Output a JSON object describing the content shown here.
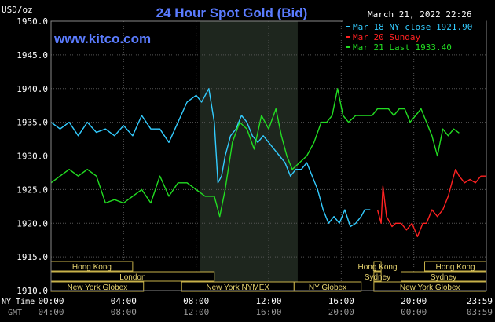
{
  "chart_data": {
    "type": "line",
    "title": "24 Hour Spot Gold (Bid)",
    "source_label": "www.kitco.com",
    "timestamp": "March 21, 2022 22:26",
    "ylabel": "USD/oz",
    "ylim": [
      1910,
      1950
    ],
    "y_ticks": [
      "1950.0",
      "1945.0",
      "1940.0",
      "1935.0",
      "1930.0",
      "1925.0",
      "1920.0",
      "1915.0",
      "1910.0"
    ],
    "x_axis_ny_label": "NY Time",
    "x_axis_gmt_label": "GMT",
    "x_ticks_ny": [
      "00:00",
      "04:00",
      "08:00",
      "12:00",
      "16:00",
      "20:00",
      "23:59"
    ],
    "x_ticks_gmt": [
      "04:00",
      "08:00",
      "12:00",
      "16:00",
      "20:00",
      "00:00",
      "03:59"
    ],
    "x_tick_hours": [
      0,
      4,
      8,
      12,
      16,
      20,
      23.98
    ],
    "shaded_hours": [
      8.2,
      13.6
    ],
    "grid": true,
    "legend_position": "top-right",
    "legend": [
      {
        "label": "Mar 18 NY close 1921.90",
        "color": "#33ccff"
      },
      {
        "label": "Mar 20 Sunday",
        "color": "#ff2222"
      },
      {
        "label": "Mar 21 Last 1933.40",
        "color": "#22dd22"
      }
    ],
    "series": [
      {
        "color": "#33ccff",
        "x": [
          0,
          0.5,
          1,
          1.5,
          2,
          2.5,
          3,
          3.5,
          4,
          4.5,
          5,
          5.5,
          6,
          6.5,
          7,
          7.5,
          8,
          8.3,
          8.7,
          9,
          9.2,
          9.4,
          9.6,
          9.9,
          10.2,
          10.5,
          10.8,
          11.1,
          11.4,
          11.7,
          12,
          12.3,
          12.6,
          12.9,
          13.2,
          13.5,
          13.8,
          14.1,
          14.4,
          14.7,
          15,
          15.3,
          15.6,
          15.9,
          16.2,
          16.5,
          16.8,
          17.1,
          17.3,
          17.6
        ],
        "values": [
          1935.0,
          1934.0,
          1935.0,
          1933.0,
          1935.0,
          1933.5,
          1934.0,
          1933.0,
          1934.5,
          1933.0,
          1936.0,
          1934.0,
          1934.0,
          1932.0,
          1935.0,
          1938.0,
          1939.0,
          1938.0,
          1940.0,
          1935.0,
          1926.0,
          1927.0,
          1930.0,
          1933.0,
          1934.0,
          1936.0,
          1935.0,
          1933.0,
          1932.0,
          1933.0,
          1932.0,
          1931.0,
          1930.0,
          1929.0,
          1927.0,
          1928.0,
          1928.0,
          1929.0,
          1927.0,
          1925.0,
          1922.0,
          1920.0,
          1921.0,
          1920.0,
          1922.0,
          1919.5,
          1920.0,
          1921.0,
          1922.0,
          1922.0
        ]
      },
      {
        "color": "#ff2222",
        "x": [
          18.0,
          18.2,
          18.3,
          18.5,
          18.8,
          19.0,
          19.3,
          19.6,
          19.9,
          20.2,
          20.5,
          20.7,
          21.0,
          21.3,
          21.6,
          21.9,
          22.1,
          22.3,
          22.5,
          22.8,
          23.1,
          23.4,
          23.7,
          23.98
        ],
        "values": [
          1922.0,
          1920.0,
          1925.5,
          1921.0,
          1919.5,
          1920.0,
          1920.0,
          1919.0,
          1920.0,
          1918.0,
          1920.0,
          1920.0,
          1922.0,
          1921.0,
          1922.0,
          1924.0,
          1926.0,
          1928.0,
          1927.0,
          1926.0,
          1926.5,
          1926.0,
          1927.0,
          1927.0
        ]
      },
      {
        "color": "#22dd22",
        "x": [
          0,
          0.5,
          1,
          1.5,
          2,
          2.5,
          3,
          3.5,
          4,
          4.5,
          5,
          5.5,
          6,
          6.5,
          7,
          7.5,
          8,
          8.5,
          9,
          9.3,
          9.6,
          10.0,
          10.4,
          10.8,
          11.2,
          11.6,
          12.0,
          12.4,
          12.7,
          13.0,
          13.3,
          13.7,
          14.1,
          14.5,
          14.9,
          15.2,
          15.5,
          15.8,
          16.1,
          16.4,
          16.8,
          17.1,
          17.4,
          17.7,
          18.0,
          18.3,
          18.6,
          18.9,
          19.2,
          19.5,
          19.8,
          20.1,
          20.4,
          20.7,
          21.0,
          21.3,
          21.6,
          21.9,
          22.2,
          22.5
        ],
        "values": [
          1926.0,
          1927.0,
          1928.0,
          1927.0,
          1928.0,
          1927.0,
          1923.0,
          1923.5,
          1923.0,
          1924.0,
          1925.0,
          1923.0,
          1927.0,
          1924.0,
          1926.0,
          1926.0,
          1925.0,
          1924.0,
          1924.0,
          1921.0,
          1925.0,
          1932.0,
          1935.0,
          1934.0,
          1931.0,
          1936.0,
          1934.0,
          1937.0,
          1933.0,
          1930.0,
          1928.0,
          1929.0,
          1930.0,
          1932.0,
          1935.0,
          1935.0,
          1936.0,
          1940.0,
          1936.0,
          1935.0,
          1936.0,
          1936.0,
          1936.0,
          1936.0,
          1937.0,
          1937.0,
          1937.0,
          1936.0,
          1937.0,
          1937.0,
          1935.0,
          1936.0,
          1937.0,
          1935.0,
          1933.0,
          1930.0,
          1934.0,
          1933.0,
          1934.0,
          1933.4
        ]
      }
    ],
    "sessions": [
      {
        "label": "Hong Kong",
        "start": 0,
        "end": 4.5
      },
      {
        "label": "London",
        "start": 0,
        "end": 9
      },
      {
        "label": "New York Globex",
        "start": 0,
        "end": 5.1
      },
      {
        "label": "New York NYMEX",
        "start": 7.2,
        "end": 13.4
      },
      {
        "label": "NY Globex",
        "start": 13.4,
        "end": 17.1
      },
      {
        "label": "Hong Kong",
        "start": 17.8,
        "end": 18.2
      },
      {
        "label": "Sydney",
        "start": 17.8,
        "end": 18.2
      },
      {
        "label": "New York Globex",
        "start": 17.8,
        "end": 23.98
      },
      {
        "label": "Hong Kong",
        "start": 20.6,
        "end": 23.98
      },
      {
        "label": "Sydney",
        "start": 19.3,
        "end": 23.98
      }
    ]
  }
}
